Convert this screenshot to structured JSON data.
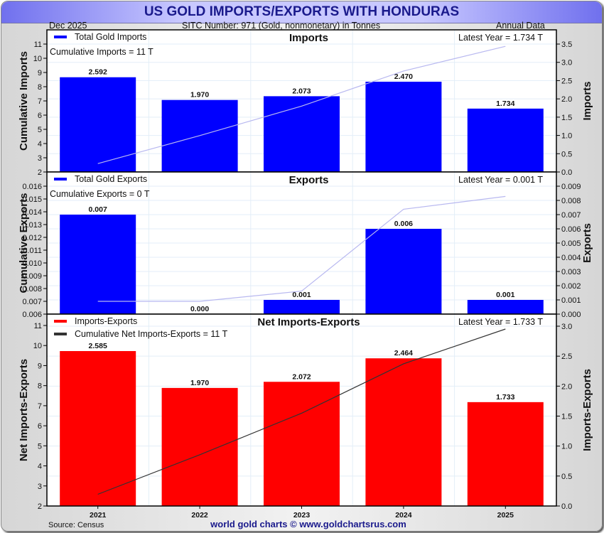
{
  "header": {
    "title": "US GOLD IMPORTS/EXPORTS WITH HONDURAS",
    "date": "Dec  2025",
    "sitc": "SITC Number: 971 (Gold, nonmonetary) in Tonnes",
    "frequency": "Annual Data"
  },
  "footer": {
    "source": "Source: Census",
    "credit": "world gold charts © www.goldchartsrus.com"
  },
  "colors": {
    "imports_bar": "#0000ff",
    "exports_bar": "#0000ff",
    "net_bar": "#ff0000",
    "cumulative_line_light": "#b8b8f0",
    "cumulative_line_dark": "#333333",
    "title_text": "#1a1a8c"
  },
  "chart_data": [
    {
      "type": "bar",
      "title": "Imports",
      "categories": [
        "2021",
        "2022",
        "2023",
        "2024",
        "2025"
      ],
      "series": [
        {
          "name": "Total Gold Imports",
          "axis": "right",
          "values": [
            2.592,
            1.97,
            2.073,
            2.47,
            1.734
          ]
        },
        {
          "name": "Cumulative Imports",
          "axis": "left",
          "type": "line",
          "values": [
            2.592,
            4.562,
            6.635,
            9.105,
            10.839
          ]
        }
      ],
      "data_labels": [
        "2.592",
        "1.970",
        "2.073",
        "2.470",
        "1.734"
      ],
      "legend": [
        "Total Gold Imports"
      ],
      "annotations": [
        "Cumulative Imports = 11 T",
        "Latest Year = 1.734 T"
      ],
      "ylabel_left": "Cumulative Imports",
      "ylabel_right": "Imports",
      "ylim_left": [
        2,
        11
      ],
      "ylim_right": [
        0,
        3.5
      ],
      "yticks_left": [
        "2",
        "3",
        "4",
        "5",
        "6",
        "7",
        "8",
        "9",
        "10",
        "11"
      ],
      "yticks_right": [
        "0.0",
        "0.5",
        "1.0",
        "1.5",
        "2.0",
        "2.5",
        "3.0",
        "3.5"
      ],
      "grid": true,
      "legend_position": "top-left"
    },
    {
      "type": "bar",
      "title": "Exports",
      "categories": [
        "2021",
        "2022",
        "2023",
        "2024",
        "2025"
      ],
      "series": [
        {
          "name": "Total Gold Exports",
          "axis": "right",
          "values": [
            0.007,
            0.0,
            0.001,
            0.006,
            0.001
          ]
        },
        {
          "name": "Cumulative Exports",
          "axis": "left",
          "type": "line",
          "values": [
            0.007,
            0.007,
            0.0078,
            0.0142,
            0.0152
          ]
        }
      ],
      "data_labels": [
        "0.007",
        "0.000",
        "0.001",
        "0.006",
        "0.001"
      ],
      "legend": [
        "Total Gold Exports"
      ],
      "annotations": [
        "Cumulative Exports = 0 T",
        "Latest Year = 0.001 T"
      ],
      "ylabel_left": "Cumulative Exports",
      "ylabel_right": "Exports",
      "ylim_left": [
        0.006,
        0.016
      ],
      "ylim_right": [
        0,
        0.009
      ],
      "yticks_left": [
        "0.006",
        "0.007",
        "0.008",
        "0.009",
        "0.010",
        "0.011",
        "0.012",
        "0.013",
        "0.014",
        "0.015",
        "0.016"
      ],
      "yticks_right": [
        "0.000",
        "0.001",
        "0.002",
        "0.003",
        "0.004",
        "0.005",
        "0.006",
        "0.007",
        "0.008",
        "0.009"
      ],
      "grid": true,
      "legend_position": "top-left"
    },
    {
      "type": "bar",
      "title": "Net Imports-Exports",
      "categories": [
        "2021",
        "2022",
        "2023",
        "2024",
        "2025"
      ],
      "series": [
        {
          "name": "Imports-Exports",
          "axis": "right",
          "values": [
            2.585,
            1.97,
            2.072,
            2.464,
            1.733
          ]
        },
        {
          "name": "Cumulative Net Imports-Exports",
          "axis": "left",
          "type": "line",
          "values": [
            2.585,
            4.555,
            6.627,
            9.091,
            10.824
          ]
        }
      ],
      "data_labels": [
        "2.585",
        "1.970",
        "2.072",
        "2.464",
        "1.733"
      ],
      "legend": [
        "Imports-Exports",
        "Cumulative Net Imports-Exports = 11 T"
      ],
      "annotations": [
        "Latest Year = 1.733 T"
      ],
      "ylabel_left": "Net Imports-Exports",
      "ylabel_right": "Imports-Exports",
      "ylim_left": [
        2,
        11
      ],
      "ylim_right": [
        0,
        3.0
      ],
      "yticks_left": [
        "2",
        "3",
        "4",
        "5",
        "6",
        "7",
        "8",
        "9",
        "10",
        "11"
      ],
      "yticks_right": [
        "0.0",
        "0.5",
        "1.0",
        "1.5",
        "2.0",
        "2.5",
        "3.0"
      ],
      "xticks": [
        "2021",
        "2022",
        "2023",
        "2024",
        "2025"
      ],
      "grid": true,
      "legend_position": "top-left"
    }
  ]
}
